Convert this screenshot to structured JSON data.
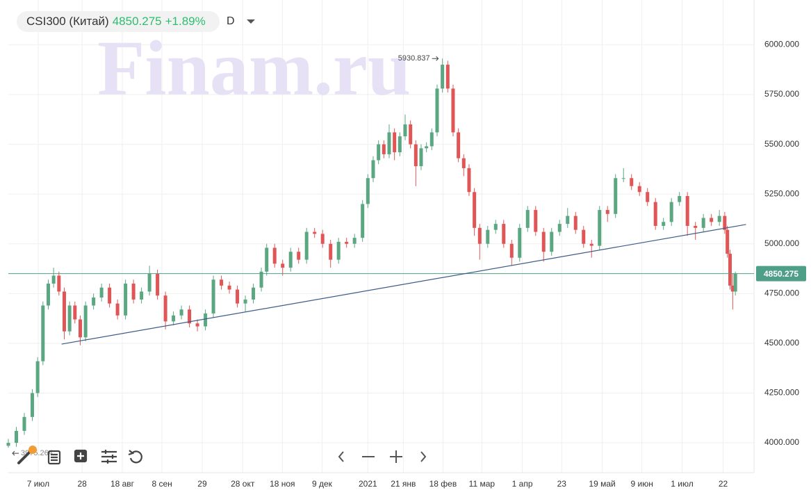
{
  "header": {
    "symbol": "CSI300 (Китай)",
    "change": "+1.89%",
    "timeframe": "D"
  },
  "watermark": "Finam.ru",
  "chart_data": {
    "type": "candlestick",
    "up_color": "#5aa782",
    "down_color": "#e05656",
    "grid": true,
    "xlim": [
      0,
      280
    ],
    "ylim": [
      3850,
      6225
    ],
    "xticks": [
      {
        "value": 11.2,
        "label": "7 июл"
      },
      {
        "value": 27.7,
        "label": "28"
      },
      {
        "value": 42.8,
        "label": "18 авг"
      },
      {
        "value": 57.7,
        "label": "8 сен"
      },
      {
        "value": 72.8,
        "label": "29"
      },
      {
        "value": 88,
        "label": "28 окт"
      },
      {
        "value": 102.9,
        "label": "18 ноя"
      },
      {
        "value": 117.8,
        "label": "9 дек"
      },
      {
        "value": 135,
        "label": "2021"
      },
      {
        "value": 148.3,
        "label": "21 янв"
      },
      {
        "value": 163.2,
        "label": "18 фев"
      },
      {
        "value": 177.8,
        "label": "11 мар"
      },
      {
        "value": 193,
        "label": "1 апр"
      },
      {
        "value": 207.8,
        "label": "23"
      },
      {
        "value": 223,
        "label": "19 май"
      },
      {
        "value": 237.9,
        "label": "9 июн"
      },
      {
        "value": 253,
        "label": "1 июл"
      },
      {
        "value": 268.4,
        "label": "22"
      }
    ],
    "yticks": [
      {
        "value": 4000,
        "label": "4000.000"
      },
      {
        "value": 4250,
        "label": "4250.000"
      },
      {
        "value": 4500,
        "label": "4500.000"
      },
      {
        "value": 4750,
        "label": "4750.000"
      },
      {
        "value": 5000,
        "label": "5000.000"
      },
      {
        "value": 5250,
        "label": "5250.000"
      },
      {
        "value": 5500,
        "label": "5500.000"
      },
      {
        "value": 5750,
        "label": "5750.000"
      },
      {
        "value": 6000,
        "label": "6000.000"
      }
    ],
    "x": [
      0,
      3,
      6,
      9,
      11,
      13,
      15,
      17,
      19,
      21,
      23,
      25,
      27,
      29,
      32,
      35,
      38,
      41,
      44,
      47,
      50,
      53,
      56,
      59,
      62,
      65,
      68,
      71,
      74,
      77,
      80,
      83,
      86,
      89,
      92,
      95,
      97,
      100,
      103,
      106,
      109,
      112,
      115,
      118,
      121,
      124,
      127,
      130,
      133,
      135,
      137,
      139,
      141,
      143,
      145,
      147,
      149,
      151,
      153,
      155,
      157,
      159,
      161,
      163,
      165,
      167,
      169,
      171,
      173,
      175,
      177,
      180,
      183,
      186,
      189,
      192,
      195,
      198,
      201,
      204,
      207,
      210,
      213,
      216,
      219,
      222,
      225,
      228,
      231,
      234,
      237,
      240,
      243,
      246,
      249,
      252,
      255,
      258,
      261,
      264,
      267,
      269,
      270,
      271,
      272,
      273
    ],
    "open": [
      3985,
      4000,
      4060,
      4130,
      4250,
      4410,
      4690,
      4800,
      4840,
      4760,
      4560,
      4690,
      4620,
      4530,
      4690,
      4730,
      4780,
      4700,
      4640,
      4800,
      4720,
      4760,
      4850,
      4740,
      4610,
      4640,
      4670,
      4600,
      4585,
      4650,
      4820,
      4790,
      4770,
      4700,
      4720,
      4780,
      4860,
      4980,
      4900,
      4880,
      4960,
      4920,
      5060,
      5050,
      5000,
      4920,
      5010,
      5000,
      5030,
      5200,
      5330,
      5420,
      5500,
      5450,
      5560,
      5460,
      5540,
      5600,
      5500,
      5390,
      5480,
      5490,
      5560,
      5780,
      5900,
      5780,
      5560,
      5430,
      5380,
      5260,
      5080,
      5000,
      5070,
      5100,
      5000,
      4930,
      5080,
      5170,
      5060,
      4960,
      5060,
      5100,
      5140,
      5070,
      5000,
      4990,
      5170,
      5150,
      5330,
      5330,
      5290,
      5260,
      5210,
      5090,
      5110,
      5210,
      5240,
      5090,
      5080,
      5130,
      5110,
      5140,
      5070,
      4950,
      4790,
      4760
    ],
    "high": [
      4020,
      4080,
      4150,
      4270,
      4430,
      4710,
      4820,
      4880,
      4860,
      4780,
      4710,
      4710,
      4640,
      4710,
      4750,
      4800,
      4800,
      4720,
      4820,
      4820,
      4780,
      4890,
      4870,
      4760,
      4660,
      4690,
      4690,
      4620,
      4670,
      4840,
      4840,
      4810,
      4790,
      4740,
      4800,
      4880,
      5000,
      5000,
      4920,
      4980,
      4980,
      5080,
      5080,
      5070,
      5020,
      5030,
      5030,
      5050,
      5220,
      5350,
      5440,
      5520,
      5520,
      5600,
      5580,
      5560,
      5650,
      5620,
      5520,
      5500,
      5510,
      5580,
      5800,
      5930.837,
      5920,
      5800,
      5580,
      5450,
      5400,
      5280,
      5100,
      5090,
      5120,
      5120,
      5020,
      5100,
      5190,
      5190,
      5080,
      5080,
      5120,
      5180,
      5160,
      5090,
      5020,
      5190,
      5190,
      5350,
      5380,
      5350,
      5310,
      5280,
      5230,
      5130,
      5230,
      5260,
      5260,
      5110,
      5150,
      5150,
      5170,
      5160,
      5090,
      4970,
      4850,
      4860
    ],
    "low": [
      3975.264,
      3980,
      4040,
      4110,
      4230,
      4390,
      4670,
      4780,
      4740,
      4520,
      4540,
      4600,
      4490,
      4510,
      4670,
      4710,
      4680,
      4620,
      4620,
      4700,
      4700,
      4740,
      4720,
      4570,
      4590,
      4620,
      4580,
      4560,
      4565,
      4630,
      4770,
      4750,
      4680,
      4660,
      4700,
      4760,
      4840,
      4880,
      4840,
      4860,
      4900,
      4900,
      5030,
      4980,
      4880,
      4900,
      4980,
      4980,
      5010,
      5180,
      5310,
      5400,
      5430,
      5430,
      5420,
      5440,
      5520,
      5480,
      5290,
      5370,
      5460,
      5470,
      5540,
      5760,
      5760,
      5540,
      5410,
      5340,
      5240,
      5040,
      4920,
      4980,
      5050,
      4980,
      4890,
      4910,
      5060,
      5040,
      4910,
      4940,
      5040,
      5080,
      5050,
      4980,
      4930,
      4970,
      5110,
      5130,
      5310,
      5270,
      5240,
      5190,
      5070,
      5070,
      5090,
      5190,
      5040,
      5020,
      5060,
      5090,
      5090,
      5050,
      4930,
      4770,
      4670,
      4740
    ],
    "close": [
      4000,
      4060,
      4130,
      4250,
      4410,
      4690,
      4800,
      4840,
      4760,
      4560,
      4690,
      4620,
      4530,
      4690,
      4730,
      4780,
      4700,
      4640,
      4800,
      4720,
      4760,
      4850,
      4740,
      4610,
      4640,
      4670,
      4600,
      4585,
      4650,
      4820,
      4790,
      4770,
      4700,
      4720,
      4780,
      4860,
      4980,
      4900,
      4880,
      4960,
      4920,
      5060,
      5050,
      5000,
      4920,
      5010,
      5000,
      5030,
      5200,
      5330,
      5420,
      5500,
      5450,
      5560,
      5460,
      5540,
      5600,
      5500,
      5390,
      5480,
      5490,
      5560,
      5780,
      5900,
      5780,
      5560,
      5430,
      5380,
      5260,
      5080,
      5000,
      5070,
      5100,
      5000,
      4930,
      5080,
      5170,
      5060,
      4960,
      5060,
      5100,
      5140,
      5070,
      5000,
      4990,
      5170,
      5150,
      5330,
      5330,
      5290,
      5260,
      5210,
      5090,
      5110,
      5210,
      5240,
      5090,
      5080,
      5130,
      5110,
      5140,
      5070,
      4950,
      4790,
      4760,
      4850.275
    ],
    "trendline": {
      "x": [
        20,
        277
      ],
      "y": [
        4496,
        5097
      ],
      "color": "#3d5a8a"
    },
    "price_line_color": "#4f9e88"
  }
}
